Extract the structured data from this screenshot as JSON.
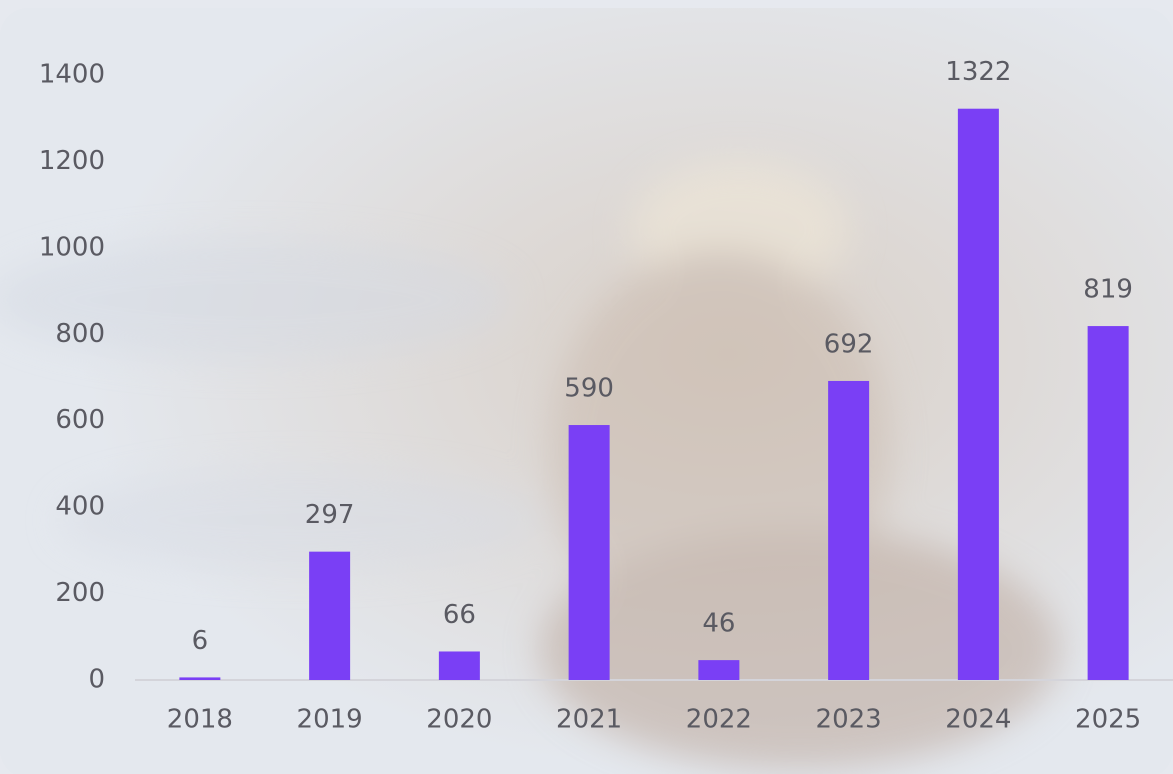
{
  "chart_data": {
    "type": "bar",
    "categories": [
      "2018",
      "2019",
      "2020",
      "2021",
      "2022",
      "2023",
      "2024",
      "2025"
    ],
    "values": [
      6,
      297,
      66,
      590,
      46,
      692,
      1322,
      819
    ],
    "color": "#7a3ff5",
    "ylim": [
      0,
      1400
    ],
    "yticks": [
      0,
      200,
      400,
      600,
      800,
      1000,
      1200,
      1400
    ],
    "value_labels_shown": true
  }
}
